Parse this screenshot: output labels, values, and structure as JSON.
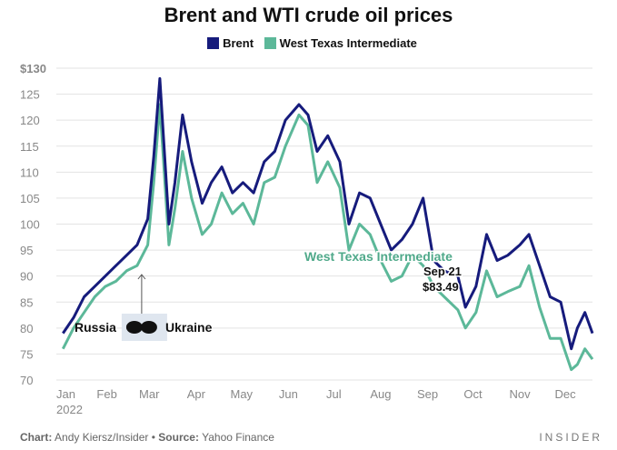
{
  "chart_data": {
    "type": "line",
    "title": "Brent and WTI crude oil prices",
    "ylim": [
      70,
      130
    ],
    "yticks": [
      "$130",
      "125",
      "120",
      "115",
      "110",
      "105",
      "100",
      "95",
      "90",
      "85",
      "80",
      "75",
      "70"
    ],
    "xticks": [
      "Jan\n2022",
      "Feb",
      "Mar",
      "Apr",
      "May",
      "Jun",
      "Jul",
      "Aug",
      "Sep",
      "Oct",
      "Nov",
      "Dec"
    ],
    "grid": true,
    "legend_position": "top",
    "colors": {
      "Brent": "#161b7c",
      "West Texas Intermediate": "#5cb899"
    },
    "x": [
      "2022-01-03",
      "2022-01-10",
      "2022-01-17",
      "2022-01-24",
      "2022-01-31",
      "2022-02-07",
      "2022-02-14",
      "2022-02-21",
      "2022-02-28",
      "2022-03-04",
      "2022-03-08",
      "2022-03-14",
      "2022-03-18",
      "2022-03-23",
      "2022-03-29",
      "2022-04-05",
      "2022-04-11",
      "2022-04-18",
      "2022-04-25",
      "2022-05-02",
      "2022-05-09",
      "2022-05-16",
      "2022-05-23",
      "2022-05-30",
      "2022-06-08",
      "2022-06-14",
      "2022-06-20",
      "2022-06-27",
      "2022-07-05",
      "2022-07-11",
      "2022-07-18",
      "2022-07-25",
      "2022-08-01",
      "2022-08-08",
      "2022-08-15",
      "2022-08-22",
      "2022-08-29",
      "2022-09-05",
      "2022-09-12",
      "2022-09-21",
      "2022-09-26",
      "2022-10-03",
      "2022-10-10",
      "2022-10-17",
      "2022-10-24",
      "2022-11-01",
      "2022-11-07",
      "2022-11-14",
      "2022-11-21",
      "2022-11-28",
      "2022-12-05",
      "2022-12-09",
      "2022-12-14",
      "2022-12-19"
    ],
    "series": [
      {
        "name": "Brent",
        "values": [
          79,
          82,
          86,
          88,
          90,
          92,
          94,
          96,
          101,
          113,
          128,
          100,
          108,
          121,
          112,
          104,
          108,
          111,
          106,
          108,
          106,
          112,
          114,
          120,
          123,
          121,
          114,
          117,
          112,
          100,
          106,
          105,
          100,
          95,
          97,
          100,
          105,
          93,
          91,
          90,
          84,
          88,
          98,
          93,
          94,
          96,
          98,
          92,
          86,
          85,
          76,
          80,
          83,
          79
        ]
      },
      {
        "name": "West Texas Intermediate",
        "values": [
          76,
          80,
          83,
          86,
          88,
          89,
          91,
          92,
          96,
          108,
          123,
          96,
          103,
          114,
          105,
          98,
          100,
          106,
          102,
          104,
          100,
          108,
          109,
          115,
          121,
          119,
          108,
          112,
          107,
          95,
          100,
          98,
          93,
          89,
          90,
          94,
          92,
          88,
          86,
          83.49,
          80,
          83,
          91,
          86,
          87,
          88,
          92,
          84,
          78,
          78,
          72,
          73,
          76,
          74
        ]
      }
    ],
    "annotations": {
      "event_left": "Russia",
      "event_right": "Ukraine",
      "series_label": "West Texas Intermediate",
      "point_date": "Sep 21",
      "point_value": "$83.49"
    }
  },
  "legend": {
    "brent": "Brent",
    "wti": "West Texas Intermediate"
  },
  "footer": {
    "chart_label": "Chart:",
    "chart_credit": "Andy Kiersz/Insider",
    "sep": "•",
    "source_label": "Source:",
    "source": "Yahoo Finance",
    "brand": "INSIDER"
  }
}
